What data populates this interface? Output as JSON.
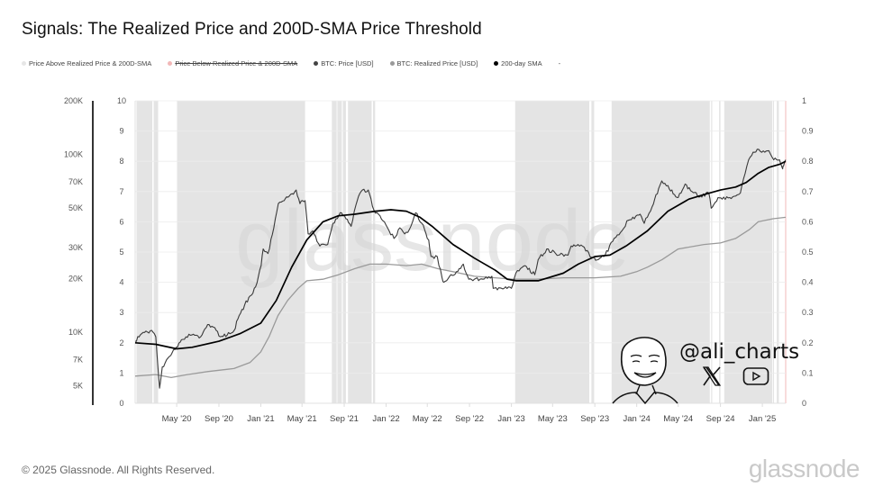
{
  "title": "Signals: The Realized Price and 200D-SMA Price Threshold",
  "legend": [
    {
      "label": "Price Above Realized Price & 200D-SMA",
      "color": "#e6e6e6",
      "struck": false
    },
    {
      "label": "Price Below Realized Price & 200D-SMA",
      "color": "#f2b8b8",
      "struck": true
    },
    {
      "label": "BTC: Price [USD]",
      "color": "#444444",
      "struck": false
    },
    {
      "label": "BTC: Realized Price [USD]",
      "color": "#9a9a9a",
      "struck": false
    },
    {
      "label": "200-day SMA",
      "color": "#000000",
      "struck": false
    },
    {
      "label": "-",
      "color": "",
      "struck": false
    }
  ],
  "footer": {
    "copyright": "© 2025 Glassnode. All Rights Reserved.",
    "brand": "glassnode",
    "watermark": "glassnode"
  },
  "overlay": {
    "handle": "@ali_charts",
    "icons": [
      "x-logo-icon",
      "youtube-icon"
    ]
  },
  "chart_data": {
    "type": "line",
    "title": "Signals: The Realized Price and 200D-SMA Price Threshold",
    "xlabel": "",
    "ylabel": "",
    "x_range": [
      "2020-01-01",
      "2025-03-10"
    ],
    "x_ticks": [
      "May '20",
      "Sep '20",
      "Jan '21",
      "May '21",
      "Sep '21",
      "Jan '22",
      "May '22",
      "Sep '22",
      "Jan '23",
      "May '23",
      "Sep '23",
      "Jan '24",
      "May '24",
      "Sep '24",
      "Jan '25"
    ],
    "x_tick_dates": [
      "2020-05-01",
      "2020-09-01",
      "2021-01-01",
      "2021-05-01",
      "2021-09-01",
      "2022-01-01",
      "2022-05-01",
      "2022-09-01",
      "2023-01-01",
      "2023-05-01",
      "2023-09-01",
      "2024-01-01",
      "2024-05-01",
      "2024-09-01",
      "2025-01-01"
    ],
    "y_axes": {
      "price_log": {
        "ticks": [
          "200K",
          "100K",
          "70K",
          "50K",
          "30K",
          "20K",
          "10K",
          "7K",
          "5K"
        ],
        "tick_values": [
          200000,
          100000,
          70000,
          50000,
          30000,
          20000,
          10000,
          7000,
          5000
        ],
        "scale": "log"
      },
      "signal_left": {
        "ticks": [
          "0",
          "1",
          "2",
          "3",
          "4",
          "5",
          "6",
          "7",
          "8",
          "9",
          "10"
        ],
        "range": [
          0,
          10
        ]
      },
      "signal_right": {
        "ticks": [
          "0",
          "0.1",
          "0.2",
          "0.3",
          "0.4",
          "0.5",
          "0.6",
          "0.7",
          "0.8",
          "0.9",
          "1"
        ],
        "range": [
          0,
          1
        ]
      }
    },
    "grid": true,
    "shaded_regions_above": [
      [
        "2020-01-05",
        "2020-02-20"
      ],
      [
        "2020-02-24",
        "2020-03-08"
      ],
      [
        "2020-05-02",
        "2021-05-10"
      ],
      [
        "2021-07-27",
        "2021-08-10"
      ],
      [
        "2021-08-12",
        "2021-08-25"
      ],
      [
        "2021-08-28",
        "2021-09-06"
      ],
      [
        "2021-09-12",
        "2021-11-20"
      ],
      [
        "2021-11-24",
        "2021-11-30"
      ],
      [
        "2023-01-12",
        "2023-08-16"
      ],
      [
        "2023-08-22",
        "2023-08-30"
      ],
      [
        "2023-10-20",
        "2024-08-01"
      ],
      [
        "2024-08-05",
        "2024-08-08"
      ],
      [
        "2024-08-28",
        "2024-09-01"
      ],
      [
        "2024-09-12",
        "2025-01-30"
      ],
      [
        "2025-02-01",
        "2025-02-04"
      ],
      [
        "2025-02-12",
        "2025-02-18"
      ]
    ],
    "shaded_regions_below": [
      [
        "2025-03-01",
        "2025-03-10"
      ]
    ],
    "series": [
      {
        "name": "BTC: Price [USD]",
        "dates": [
          "2020-01-01",
          "2020-01-20",
          "2020-02-14",
          "2020-03-01",
          "2020-03-12",
          "2020-03-20",
          "2020-04-10",
          "2020-04-30",
          "2020-05-15",
          "2020-06-10",
          "2020-07-10",
          "2020-07-30",
          "2020-08-20",
          "2020-09-05",
          "2020-09-25",
          "2020-10-15",
          "2020-10-30",
          "2020-11-15",
          "2020-12-01",
          "2020-12-17",
          "2021-01-02",
          "2021-01-08",
          "2021-01-22",
          "2021-02-08",
          "2021-02-21",
          "2021-03-10",
          "2021-03-25",
          "2021-04-14",
          "2021-04-25",
          "2021-05-10",
          "2021-05-19",
          "2021-06-01",
          "2021-06-22",
          "2021-07-15",
          "2021-07-30",
          "2021-08-20",
          "2021-09-06",
          "2021-09-21",
          "2021-10-05",
          "2021-10-20",
          "2021-11-10",
          "2021-11-26",
          "2021-12-10",
          "2021-12-27",
          "2022-01-10",
          "2022-01-24",
          "2022-02-10",
          "2022-02-24",
          "2022-03-10",
          "2022-03-28",
          "2022-04-15",
          "2022-05-05",
          "2022-05-12",
          "2022-05-30",
          "2022-06-13",
          "2022-06-18",
          "2022-07-05",
          "2022-07-25",
          "2022-08-14",
          "2022-08-30",
          "2022-09-15",
          "2022-10-10",
          "2022-11-05",
          "2022-11-09",
          "2022-11-21",
          "2022-12-15",
          "2023-01-01",
          "2023-01-14",
          "2023-02-10",
          "2023-03-10",
          "2023-03-20",
          "2023-04-14",
          "2023-05-10",
          "2023-06-15",
          "2023-06-24",
          "2023-07-14",
          "2023-08-10",
          "2023-08-18",
          "2023-09-11",
          "2023-10-01",
          "2023-10-23",
          "2023-11-15",
          "2023-12-08",
          "2024-01-11",
          "2024-01-23",
          "2024-02-15",
          "2024-03-05",
          "2024-03-14",
          "2024-04-01",
          "2024-04-20",
          "2024-05-01",
          "2024-05-21",
          "2024-06-10",
          "2024-07-05",
          "2024-07-29",
          "2024-08-05",
          "2024-08-25",
          "2024-09-06",
          "2024-09-28",
          "2024-10-15",
          "2024-10-29",
          "2024-11-12",
          "2024-11-22",
          "2024-12-05",
          "2024-12-17",
          "2025-01-08",
          "2025-01-20",
          "2025-02-03",
          "2025-02-20",
          "2025-03-01",
          "2025-03-04",
          "2025-03-10"
        ],
        "values_scale_0_10": [
          2.05,
          2.3,
          2.4,
          2.2,
          0.5,
          1.2,
          1.55,
          1.85,
          2.1,
          2.25,
          2.2,
          2.6,
          2.5,
          2.2,
          2.25,
          2.4,
          2.9,
          3.25,
          3.55,
          3.85,
          4.55,
          5.1,
          4.95,
          5.8,
          6.6,
          6.7,
          6.85,
          7.05,
          6.6,
          6.7,
          5.6,
          5.7,
          5.2,
          5.25,
          5.95,
          6.3,
          6.1,
          5.85,
          6.55,
          7.0,
          7.05,
          6.4,
          6.25,
          6.0,
          5.7,
          5.45,
          5.8,
          5.6,
          5.75,
          6.3,
          5.95,
          5.4,
          4.85,
          4.85,
          4.15,
          4.0,
          4.2,
          4.35,
          4.6,
          4.1,
          4.1,
          4.1,
          4.2,
          3.8,
          3.75,
          3.85,
          3.8,
          4.3,
          4.55,
          4.25,
          4.75,
          5.1,
          4.95,
          4.9,
          5.2,
          5.25,
          5.05,
          4.85,
          4.75,
          4.9,
          5.35,
          5.65,
          6.05,
          6.25,
          5.95,
          6.5,
          7.1,
          7.35,
          7.2,
          6.9,
          6.8,
          7.25,
          7.0,
          6.85,
          6.95,
          6.45,
          6.8,
          6.75,
          6.8,
          6.85,
          6.95,
          7.6,
          8.05,
          8.3,
          8.4,
          8.3,
          8.35,
          8.05,
          8.05,
          7.75,
          7.85,
          8.05
        ]
      },
      {
        "name": "BTC: Realized Price [USD]",
        "dates": [
          "2020-01-01",
          "2020-03-01",
          "2020-04-15",
          "2020-06-01",
          "2020-08-01",
          "2020-10-15",
          "2020-12-01",
          "2021-01-01",
          "2021-01-25",
          "2021-02-20",
          "2021-03-20",
          "2021-04-20",
          "2021-05-15",
          "2021-07-01",
          "2021-08-15",
          "2021-10-01",
          "2021-11-15",
          "2022-01-01",
          "2022-03-01",
          "2022-04-15",
          "2022-06-01",
          "2022-07-15",
          "2022-09-15",
          "2022-11-15",
          "2023-01-05",
          "2023-03-15",
          "2023-06-01",
          "2023-09-01",
          "2023-11-15",
          "2024-01-01",
          "2024-02-01",
          "2024-03-15",
          "2024-05-01",
          "2024-07-15",
          "2024-09-01",
          "2024-10-15",
          "2024-11-25",
          "2024-12-20",
          "2025-02-01",
          "2025-03-10"
        ],
        "values_scale_0_10": [
          0.9,
          0.95,
          0.85,
          0.95,
          1.05,
          1.15,
          1.35,
          1.7,
          2.2,
          2.9,
          3.4,
          3.8,
          4.05,
          4.1,
          4.25,
          4.45,
          4.6,
          4.6,
          4.55,
          4.6,
          4.45,
          4.35,
          4.2,
          4.15,
          4.1,
          4.1,
          4.15,
          4.15,
          4.2,
          4.35,
          4.5,
          4.75,
          5.1,
          5.25,
          5.3,
          5.45,
          5.75,
          6.0,
          6.1,
          6.15
        ]
      },
      {
        "name": "200-day SMA",
        "dates": [
          "2020-01-01",
          "2020-03-01",
          "2020-05-01",
          "2020-06-15",
          "2020-09-01",
          "2020-11-01",
          "2021-01-01",
          "2021-02-15",
          "2021-04-01",
          "2021-05-15",
          "2021-07-01",
          "2021-08-15",
          "2021-10-01",
          "2021-12-01",
          "2022-01-15",
          "2022-03-01",
          "2022-04-10",
          "2022-05-15",
          "2022-07-15",
          "2022-09-15",
          "2022-11-15",
          "2022-12-20",
          "2023-01-15",
          "2023-03-20",
          "2023-06-01",
          "2023-07-15",
          "2023-09-01",
          "2023-10-15",
          "2023-12-01",
          "2024-02-01",
          "2024-04-01",
          "2024-06-01",
          "2024-07-15",
          "2024-09-01",
          "2024-10-15",
          "2024-11-15",
          "2024-12-20",
          "2025-01-20",
          "2025-02-20",
          "2025-03-10"
        ],
        "values_scale_0_10": [
          2.0,
          1.95,
          1.8,
          1.85,
          2.05,
          2.3,
          2.65,
          3.4,
          4.5,
          5.4,
          6.0,
          6.2,
          6.25,
          6.35,
          6.4,
          6.35,
          6.15,
          5.85,
          5.25,
          4.8,
          4.4,
          4.1,
          4.05,
          4.05,
          4.3,
          4.6,
          4.85,
          4.9,
          5.2,
          5.7,
          6.35,
          6.75,
          6.9,
          7.05,
          7.15,
          7.3,
          7.6,
          7.8,
          7.9,
          8.0
        ]
      }
    ]
  }
}
